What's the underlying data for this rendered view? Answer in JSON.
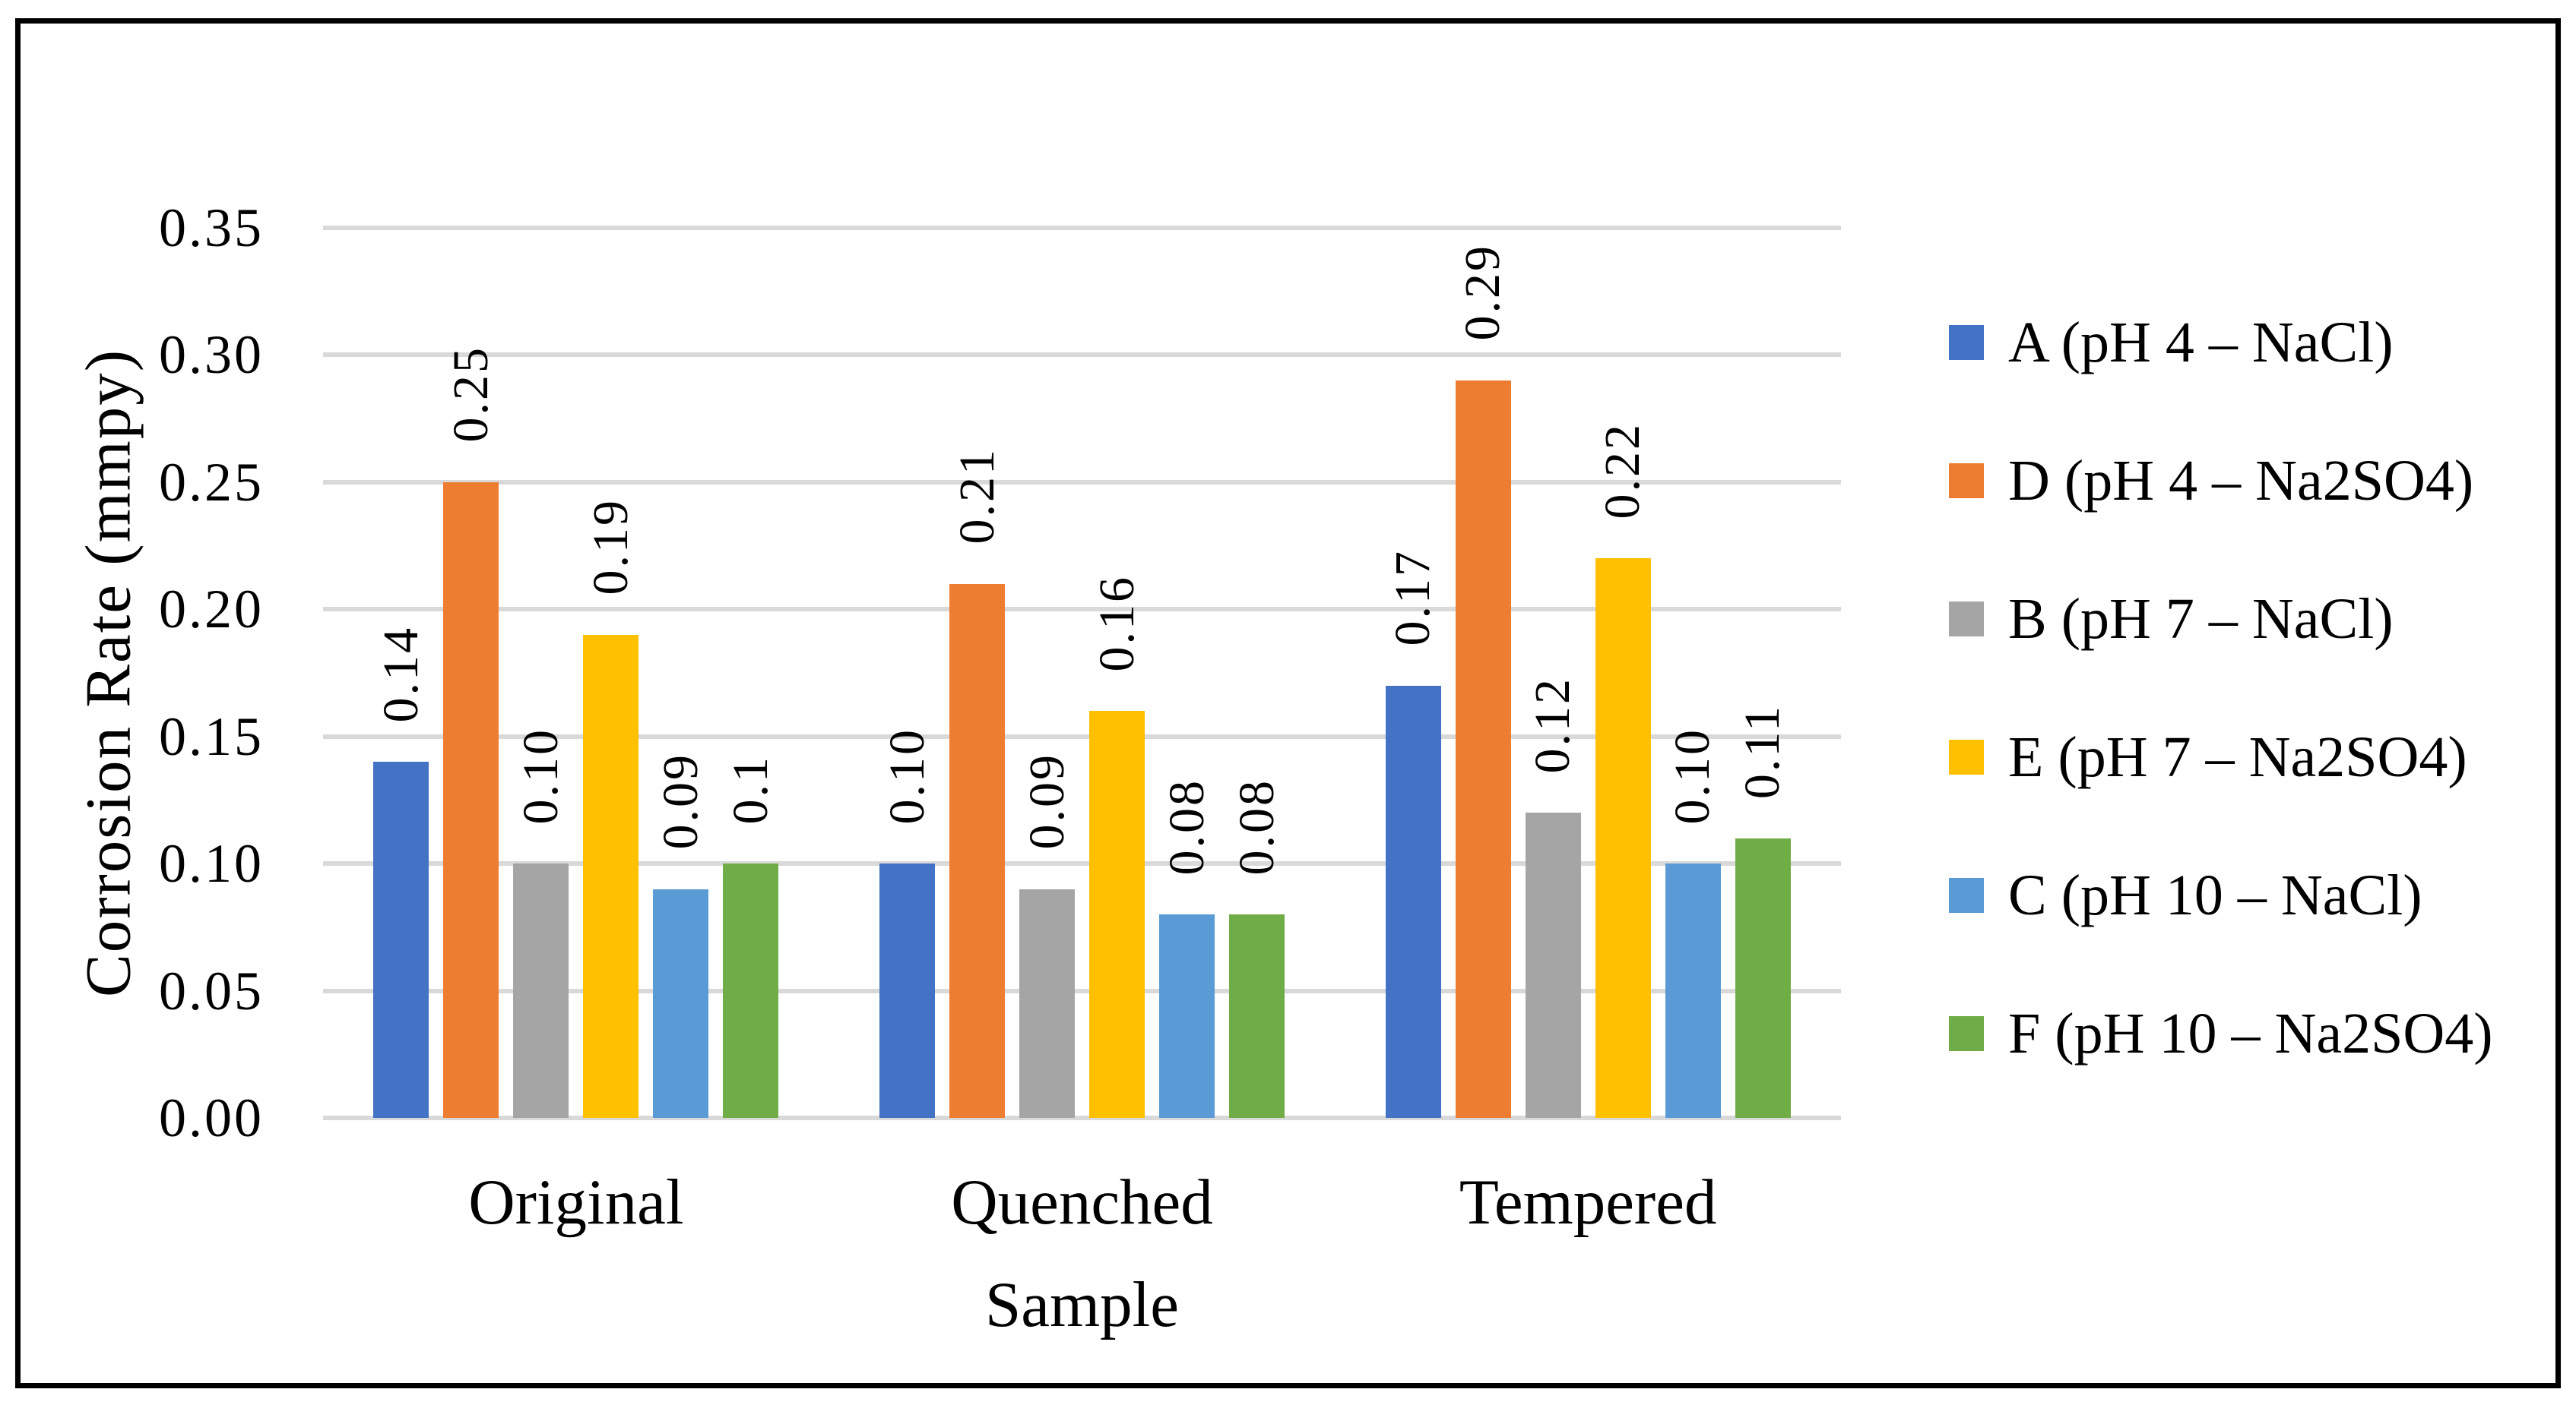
{
  "chart_data": {
    "type": "bar",
    "title": "",
    "xlabel": "Sample",
    "ylabel": "Corrosion Rate (mmpy)",
    "categories": [
      "Original",
      "Quenched",
      "Tempered"
    ],
    "series": [
      {
        "name": "A (pH 4 – NaCl)",
        "color": "#4472C4",
        "values": [
          0.14,
          0.1,
          0.17
        ],
        "labels": [
          "0.14",
          "0.10",
          "0.17"
        ]
      },
      {
        "name": "D (pH 4 – Na2SO4)",
        "color": "#ED7D31",
        "values": [
          0.25,
          0.21,
          0.29
        ],
        "labels": [
          "0.25",
          "0.21",
          "0.29"
        ]
      },
      {
        "name": "B (pH 7 – NaCl)",
        "color": "#A5A5A5",
        "values": [
          0.1,
          0.09,
          0.12
        ],
        "labels": [
          "0.10",
          "0.09",
          "0.12"
        ]
      },
      {
        "name": "E (pH 7 – Na2SO4)",
        "color": "#FFC000",
        "values": [
          0.19,
          0.16,
          0.22
        ],
        "labels": [
          "0.19",
          "0.16",
          "0.22"
        ]
      },
      {
        "name": "C (pH 10 – NaCl)",
        "color": "#5B9BD5",
        "values": [
          0.09,
          0.08,
          0.1
        ],
        "labels": [
          "0.09",
          "0.08",
          "0.10"
        ]
      },
      {
        "name": "F (pH 10 – Na2SO4)",
        "color": "#70AD47",
        "values": [
          0.1,
          0.08,
          0.11
        ],
        "labels": [
          "0.1",
          "0.08",
          "0.11"
        ]
      }
    ],
    "yticks": [
      "0.35",
      "0.30",
      "0.25",
      "0.20",
      "0.15",
      "0.10",
      "0.05",
      "0.00"
    ],
    "ylim": [
      0,
      0.35
    ],
    "grid": true,
    "gridline_color": "#D9D9D9",
    "legend_position": "right"
  }
}
